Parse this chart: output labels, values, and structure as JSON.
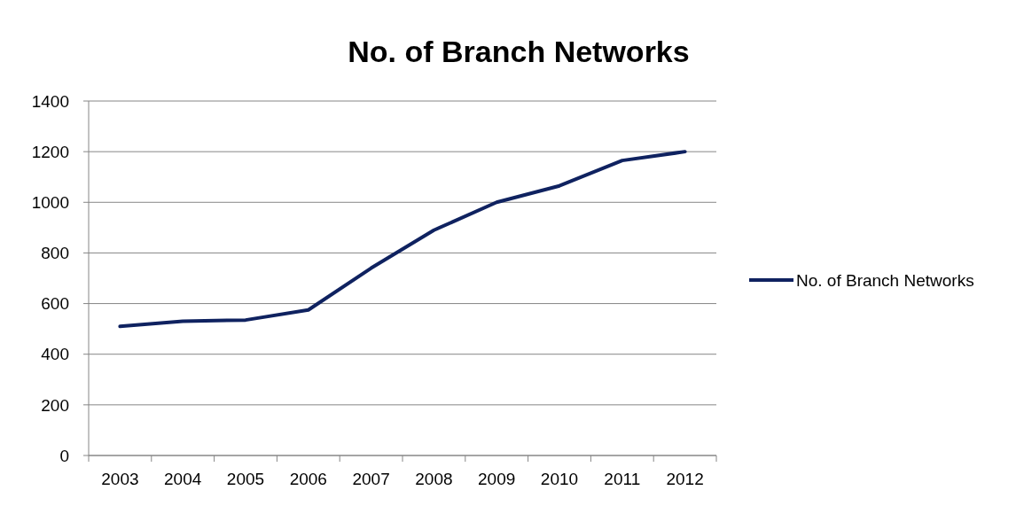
{
  "chart_data": {
    "type": "line",
    "title": "No. of Branch Networks",
    "categories": [
      "2003",
      "2004",
      "2005",
      "2006",
      "2007",
      "2008",
      "2009",
      "2010",
      "2011",
      "2012"
    ],
    "series": [
      {
        "name": "No. of Branch Networks",
        "color": "#0f2260",
        "values": [
          510,
          530,
          535,
          575,
          740,
          890,
          1000,
          1065,
          1165,
          1200
        ]
      }
    ],
    "ylim": [
      0,
      1400
    ],
    "yticks": [
      0,
      200,
      400,
      600,
      800,
      1000,
      1200,
      1400
    ],
    "grid": "y",
    "legend": "right",
    "marker": "none",
    "line_style": "solid"
  }
}
